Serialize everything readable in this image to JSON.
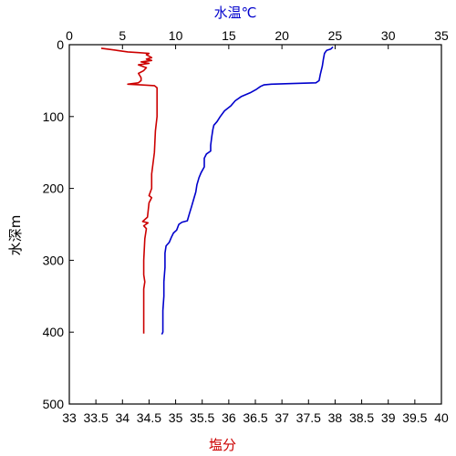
{
  "chart_data": {
    "type": "line",
    "title": "",
    "x_top_label": "水温℃",
    "x_bottom_label": "塩分",
    "ylabel": "水深m",
    "x_top_range": [
      0,
      35
    ],
    "x_top_ticks": [
      "0",
      "5",
      "10",
      "15",
      "20",
      "25",
      "30",
      "35"
    ],
    "x_bottom_range": [
      33,
      40
    ],
    "x_bottom_ticks": [
      "33",
      "33.5",
      "34",
      "34.5",
      "35",
      "35.5",
      "36",
      "36.5",
      "37",
      "37.5",
      "38",
      "38.5",
      "39",
      "39.5",
      "40"
    ],
    "y_range": [
      0,
      500
    ],
    "y_inverted": true,
    "y_ticks": [
      "0",
      "100",
      "200",
      "300",
      "400",
      "500"
    ],
    "grid": false,
    "colors": {
      "temperature": "#0000cc",
      "salinity": "#cc0000",
      "axes": "#000000"
    },
    "series": [
      {
        "axis": "top",
        "color": "#0000cc",
        "points": [
          [
            24.8,
            3
          ],
          [
            24.6,
            6
          ],
          [
            24.2,
            8
          ],
          [
            24.0,
            12
          ],
          [
            23.9,
            20
          ],
          [
            23.8,
            30
          ],
          [
            23.6,
            42
          ],
          [
            23.5,
            50
          ],
          [
            23.2,
            53
          ],
          [
            21.0,
            54
          ],
          [
            19.0,
            55
          ],
          [
            18.3,
            56
          ],
          [
            18.0,
            58
          ],
          [
            17.6,
            62
          ],
          [
            17.0,
            67
          ],
          [
            16.2,
            72
          ],
          [
            15.6,
            78
          ],
          [
            15.2,
            85
          ],
          [
            14.6,
            92
          ],
          [
            14.2,
            100
          ],
          [
            13.9,
            107
          ],
          [
            13.6,
            112
          ],
          [
            13.5,
            118
          ],
          [
            13.4,
            128
          ],
          [
            13.3,
            140
          ],
          [
            13.3,
            148
          ],
          [
            12.9,
            152
          ],
          [
            12.7,
            158
          ],
          [
            12.7,
            170
          ],
          [
            12.4,
            178
          ],
          [
            12.2,
            185
          ],
          [
            12.0,
            195
          ],
          [
            11.9,
            205
          ],
          [
            11.7,
            215
          ],
          [
            11.5,
            225
          ],
          [
            11.3,
            235
          ],
          [
            11.1,
            245
          ],
          [
            10.6,
            247
          ],
          [
            10.3,
            250
          ],
          [
            10.1,
            258
          ],
          [
            9.8,
            262
          ],
          [
            9.6,
            268
          ],
          [
            9.4,
            275
          ],
          [
            9.1,
            280
          ],
          [
            9.0,
            290
          ],
          [
            9.0,
            310
          ],
          [
            8.9,
            330
          ],
          [
            8.9,
            350
          ],
          [
            8.8,
            370
          ],
          [
            8.8,
            390
          ],
          [
            8.8,
            400
          ],
          [
            8.7,
            403
          ]
        ]
      },
      {
        "axis": "bottom",
        "color": "#cc0000",
        "points": [
          [
            33.6,
            5
          ],
          [
            33.7,
            6
          ],
          [
            33.9,
            8
          ],
          [
            34.1,
            10
          ],
          [
            34.3,
            11
          ],
          [
            34.5,
            12
          ],
          [
            34.45,
            14
          ],
          [
            34.5,
            16
          ],
          [
            34.55,
            18
          ],
          [
            34.45,
            20
          ],
          [
            34.55,
            22
          ],
          [
            34.35,
            24
          ],
          [
            34.5,
            26
          ],
          [
            34.3,
            28
          ],
          [
            34.45,
            32
          ],
          [
            34.4,
            36
          ],
          [
            34.3,
            40
          ],
          [
            34.35,
            46
          ],
          [
            34.35,
            50
          ],
          [
            34.3,
            53
          ],
          [
            34.1,
            55
          ],
          [
            34.35,
            56
          ],
          [
            34.6,
            57
          ],
          [
            34.65,
            60
          ],
          [
            34.65,
            75
          ],
          [
            34.65,
            100
          ],
          [
            34.62,
            120
          ],
          [
            34.6,
            150
          ],
          [
            34.55,
            180
          ],
          [
            34.55,
            200
          ],
          [
            34.5,
            210
          ],
          [
            34.55,
            213
          ],
          [
            34.5,
            220
          ],
          [
            34.47,
            240
          ],
          [
            34.38,
            246
          ],
          [
            34.48,
            248
          ],
          [
            34.4,
            252
          ],
          [
            34.45,
            256
          ],
          [
            34.42,
            270
          ],
          [
            34.4,
            300
          ],
          [
            34.4,
            320
          ],
          [
            34.42,
            330
          ],
          [
            34.4,
            340
          ],
          [
            34.4,
            370
          ],
          [
            34.4,
            395
          ],
          [
            34.4,
            402
          ]
        ]
      }
    ]
  }
}
